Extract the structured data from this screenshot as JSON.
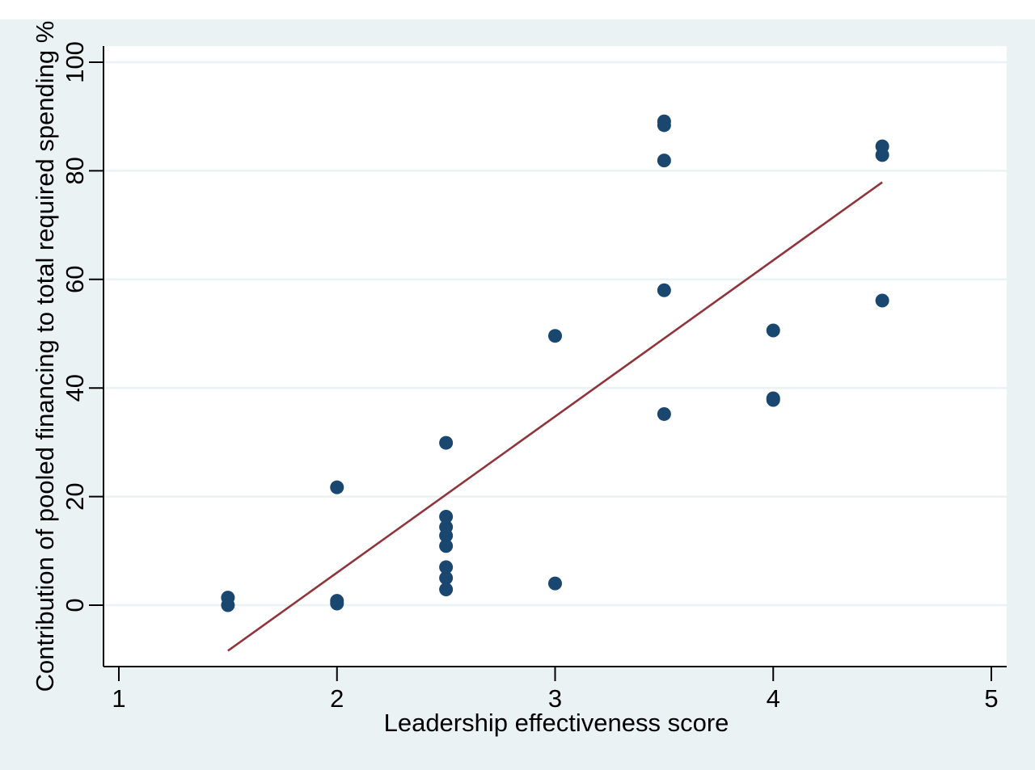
{
  "chart_data": {
    "type": "scatter",
    "xlabel": "Leadership effectiveness score",
    "ylabel": "Contribution of pooled financing to total required spending %",
    "xlim": [
      1,
      5
    ],
    "ylim": [
      -11.5,
      102
    ],
    "x_ticks": [
      "1",
      "2",
      "3",
      "4",
      "5"
    ],
    "y_ticks": [
      "0",
      "20",
      "40",
      "60",
      "80",
      "100"
    ],
    "grid": "horizontal",
    "legend": "none",
    "colors": {
      "outer_background": "#eaf2f3",
      "plot_background": "#ffffff",
      "grid": "#eaf2f3",
      "marker": "#1a476f",
      "fit_line": "#90353b"
    },
    "series": [
      {
        "type": "scatter",
        "points": [
          {
            "x": 1.5,
            "y": 1.4
          },
          {
            "x": 1.5,
            "y": 0.0
          },
          {
            "x": 2.0,
            "y": 21.7
          },
          {
            "x": 2.0,
            "y": 0.8
          },
          {
            "x": 2.0,
            "y": 0.3
          },
          {
            "x": 2.5,
            "y": 29.9
          },
          {
            "x": 2.5,
            "y": 16.3
          },
          {
            "x": 2.5,
            "y": 14.4
          },
          {
            "x": 2.5,
            "y": 12.8
          },
          {
            "x": 2.5,
            "y": 10.9
          },
          {
            "x": 2.5,
            "y": 7.0
          },
          {
            "x": 2.5,
            "y": 5.0
          },
          {
            "x": 2.5,
            "y": 2.9
          },
          {
            "x": 3.0,
            "y": 49.6
          },
          {
            "x": 3.0,
            "y": 4.0
          },
          {
            "x": 3.5,
            "y": 89.1
          },
          {
            "x": 3.5,
            "y": 88.4
          },
          {
            "x": 3.5,
            "y": 81.9
          },
          {
            "x": 3.5,
            "y": 58.0
          },
          {
            "x": 3.5,
            "y": 35.2
          },
          {
            "x": 4.0,
            "y": 50.6
          },
          {
            "x": 4.0,
            "y": 38.1
          },
          {
            "x": 4.0,
            "y": 37.8
          },
          {
            "x": 4.5,
            "y": 84.5
          },
          {
            "x": 4.5,
            "y": 82.9
          },
          {
            "x": 4.5,
            "y": 56.1
          }
        ]
      },
      {
        "type": "line",
        "points": [
          {
            "x": 1.5,
            "y": -8.4
          },
          {
            "x": 4.5,
            "y": 77.9
          }
        ]
      }
    ]
  }
}
